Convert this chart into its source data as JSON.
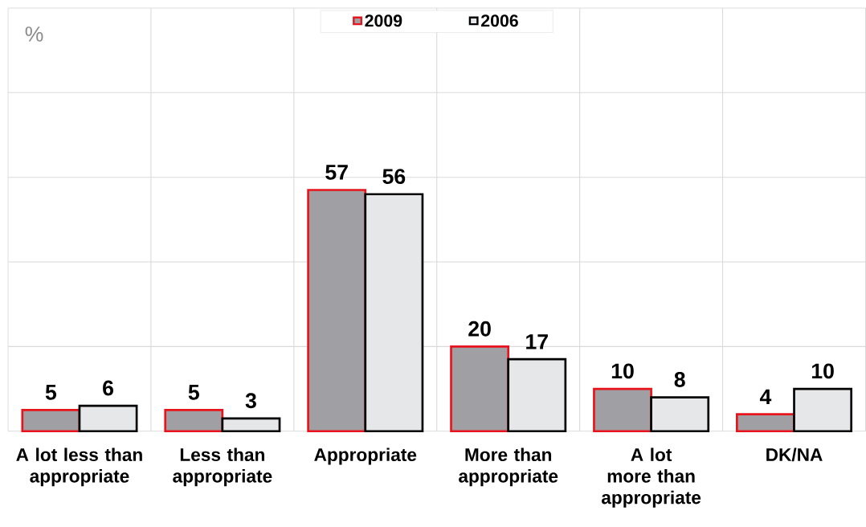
{
  "chart_data": {
    "type": "bar",
    "ylabel": "%",
    "categories": [
      "A lot less than appropriate",
      "Less than appropriate",
      "Appropriate",
      "More than appropriate",
      "A lot more than appropriate",
      "DK/NA"
    ],
    "series": [
      {
        "name": "2009",
        "color": "#a09fa4",
        "values": [
          5,
          5,
          57,
          20,
          10,
          4
        ]
      },
      {
        "name": "2006",
        "color": "#e6e7e8",
        "values": [
          6,
          3,
          56,
          17,
          8,
          10
        ]
      }
    ],
    "ylim": [
      0,
      100
    ],
    "yticks": [
      {
        "value": 0,
        "label": null
      },
      {
        "value": 20,
        "label": null
      },
      {
        "value": 40,
        "label": null
      },
      {
        "value": 60,
        "label": null
      },
      {
        "value": 80,
        "label": null
      },
      {
        "value": 100,
        "label": null
      }
    ],
    "tick_labels": "x",
    "grid": true,
    "legend": "top",
    "data_labels": true
  }
}
